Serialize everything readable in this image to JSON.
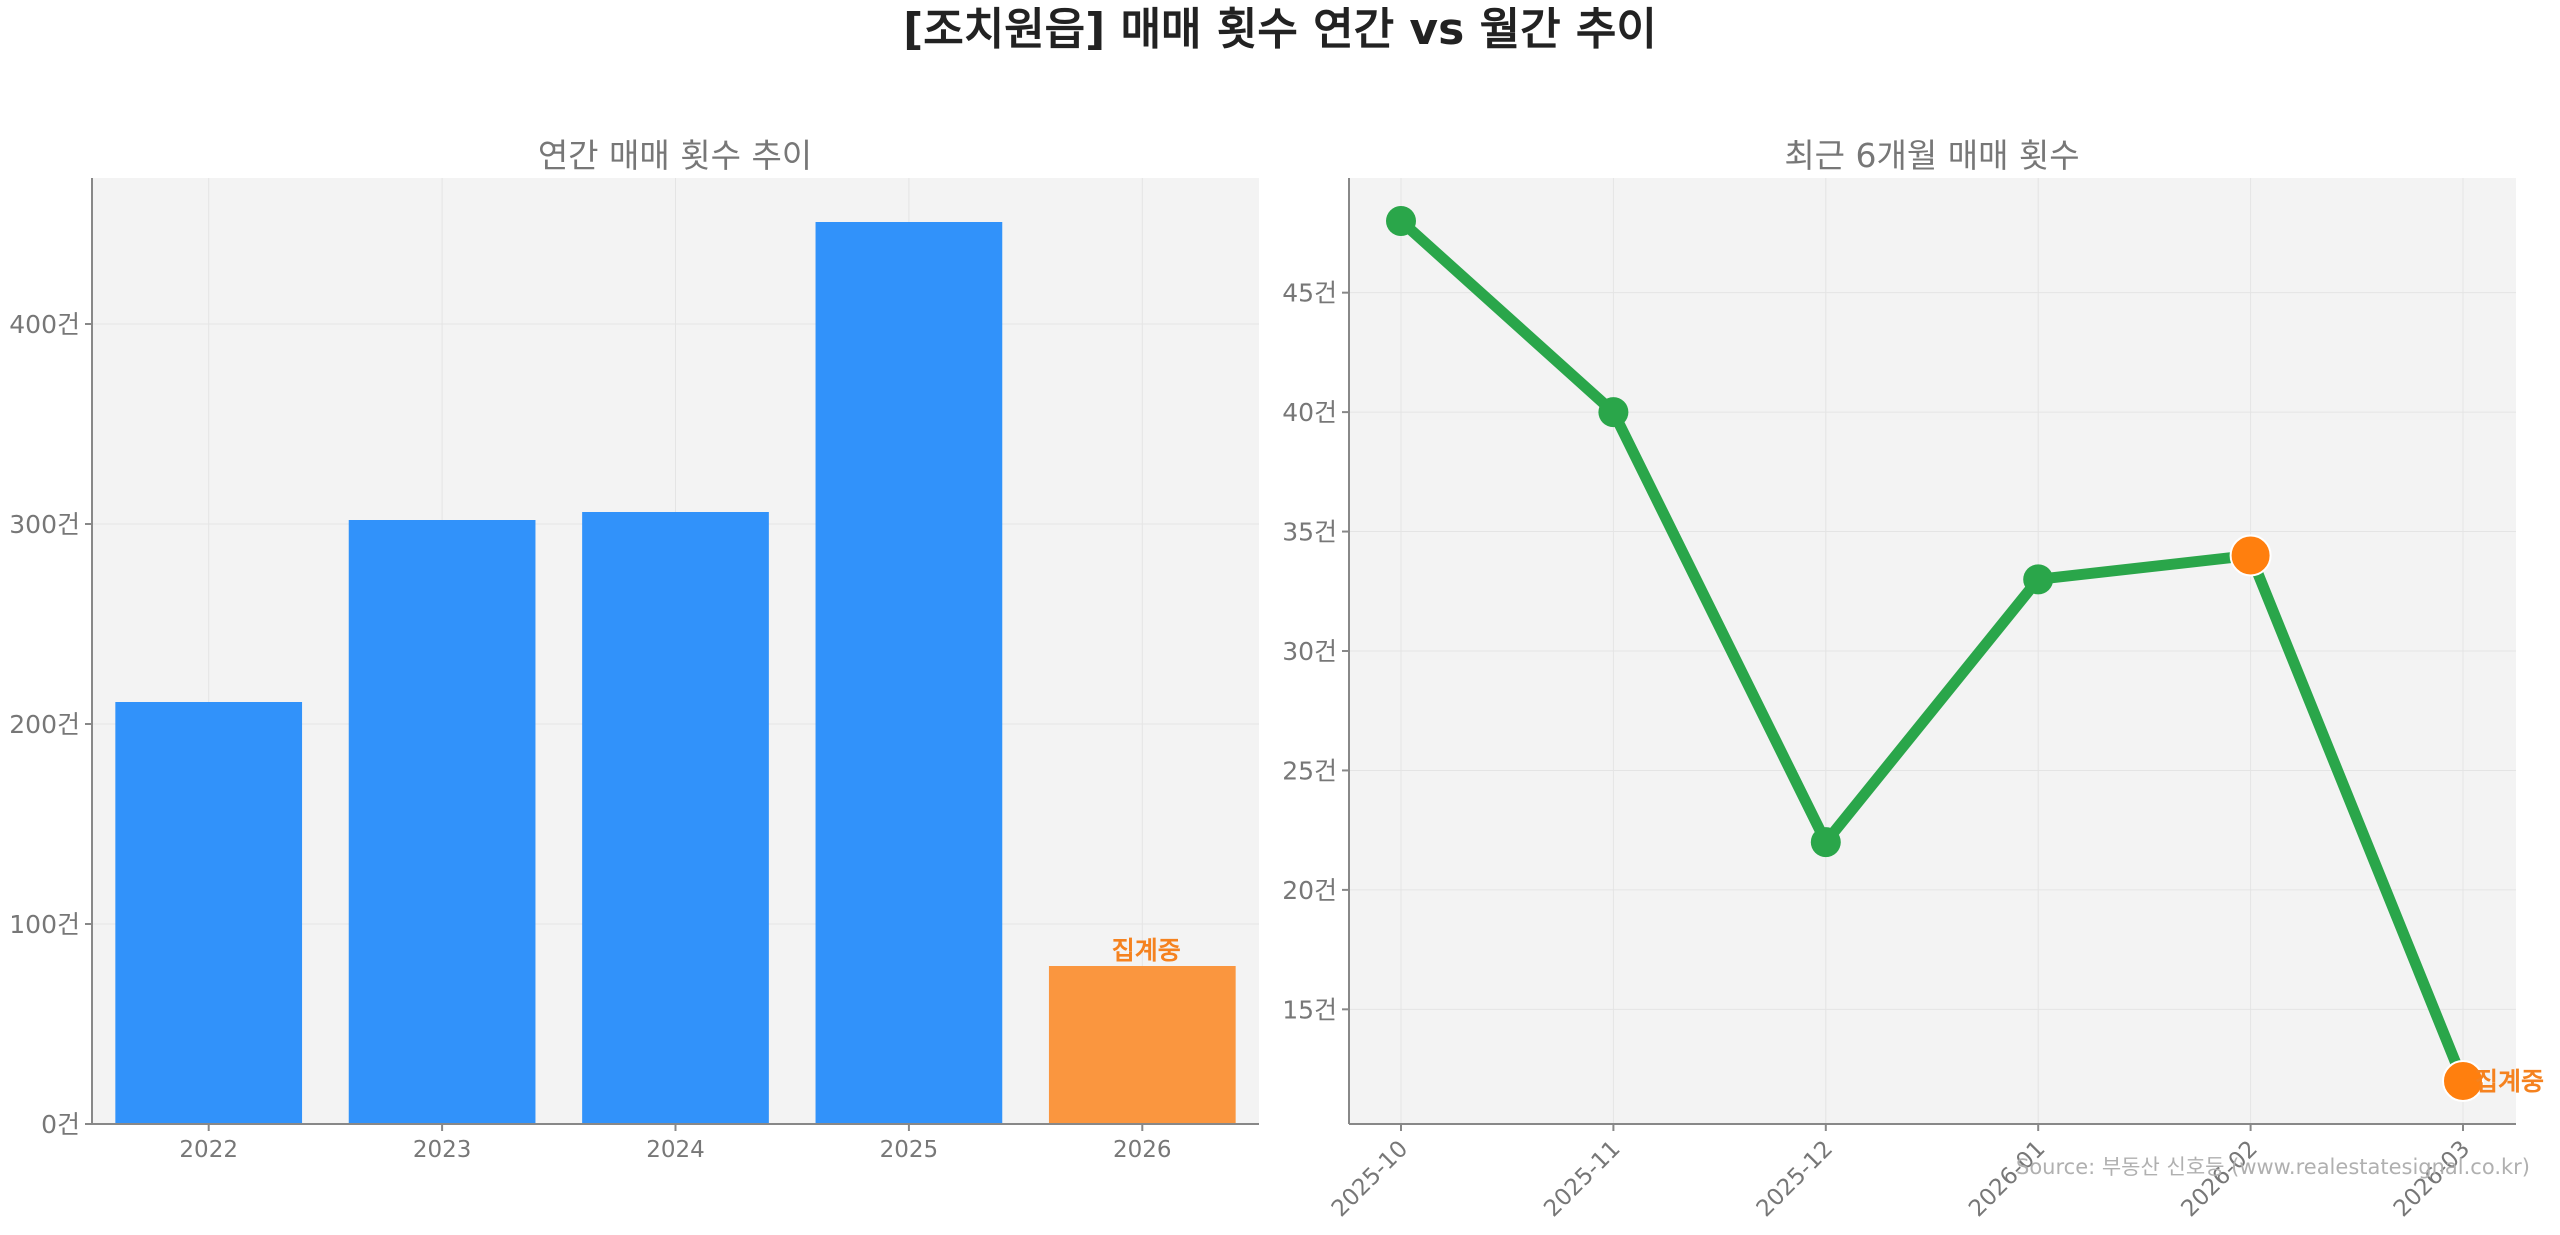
{
  "figure_title": "[조치원읍] 매매 횟수 연간 vs 월간 추이",
  "source_note": "Source: 부동산 신호등 (www.realestatesignal.co.kr)",
  "colors": {
    "bar": "#3192fa",
    "bar_partial": "#fa963f",
    "line": "#2aa64a",
    "highlight_point": "#ff7f0e",
    "panel_bg": "#f3f3f3",
    "partial_label": "#f5821f"
  },
  "chart_data": [
    {
      "type": "bar",
      "title": "연간 매매 횟수 추이",
      "categories": [
        "2022",
        "2023",
        "2024",
        "2025",
        "2026"
      ],
      "values": [
        211,
        302,
        306,
        451,
        79
      ],
      "partial_index": 4,
      "partial_label": "집계중",
      "ylim": [
        0,
        473
      ],
      "yticks": [
        0,
        100,
        200,
        300,
        400
      ],
      "ytick_labels": [
        "0건",
        "100건",
        "200건",
        "300건",
        "400건"
      ],
      "grid": true,
      "xlabel": "",
      "ylabel": ""
    },
    {
      "type": "line",
      "title": "최근 6개월 매매 횟수",
      "categories": [
        "2025-10",
        "2025-11",
        "2025-12",
        "2026-01",
        "2026-02",
        "2026-03"
      ],
      "values": [
        48,
        40,
        22,
        33,
        34,
        12
      ],
      "highlight_indices": [
        4,
        5
      ],
      "partial_index": 5,
      "partial_label": "집계중",
      "ylim": [
        10.2,
        49.8
      ],
      "yticks": [
        15,
        20,
        25,
        30,
        35,
        40,
        45
      ],
      "ytick_labels": [
        "15건",
        "20건",
        "25건",
        "30건",
        "35건",
        "40건",
        "45건"
      ],
      "grid": true,
      "xlabel": "",
      "ylabel": ""
    }
  ]
}
